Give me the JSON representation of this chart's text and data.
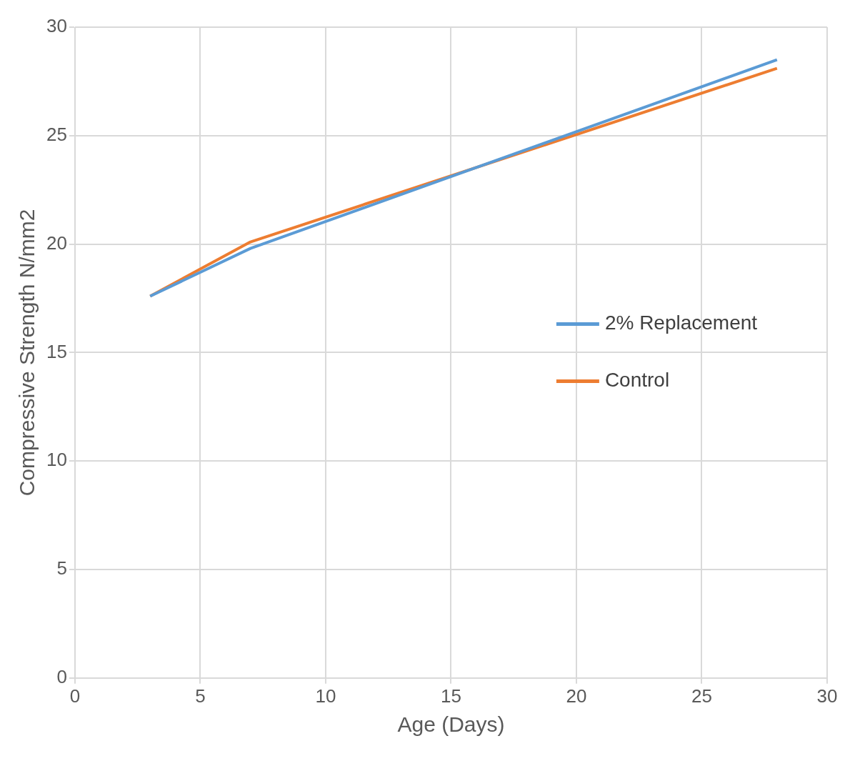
{
  "chart_data": {
    "type": "line",
    "xlabel": "Age (Days)",
    "ylabel": "Compressive Strength N/mm2",
    "x": [
      3,
      7,
      28
    ],
    "series": [
      {
        "name": "2% Replacement",
        "color": "#5b9bd5",
        "values": [
          17.6,
          19.8,
          28.5
        ]
      },
      {
        "name": "Control",
        "color": "#ed7d31",
        "values": [
          17.6,
          20.1,
          28.1
        ]
      }
    ],
    "xlim": [
      0,
      30
    ],
    "xticks": [
      0,
      5,
      10,
      15,
      20,
      25,
      30
    ],
    "ylim": [
      0,
      30
    ],
    "yticks": [
      0,
      5,
      10,
      15,
      20,
      25,
      30
    ],
    "grid": true,
    "legend": "right",
    "marker": "none",
    "line_style": "solid"
  }
}
